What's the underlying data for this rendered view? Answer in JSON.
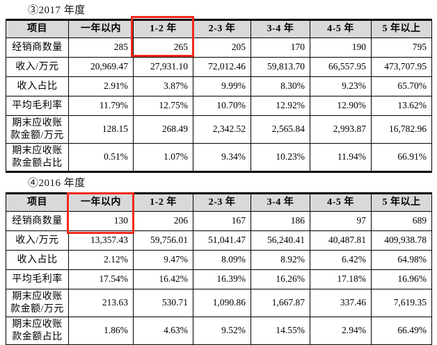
{
  "annotation": {
    "box_color": "#f2281c",
    "boxes": [
      {
        "section_title": "③2017 年度",
        "highlighted_column": "1-2 年",
        "highlighted_value": "265"
      },
      {
        "section_title": "④2016 年度",
        "highlighted_column": "一年以内",
        "highlighted_value": "130"
      }
    ]
  },
  "sections": [
    {
      "title": "③2017 年度",
      "columns": [
        "项目",
        "一年以内",
        "1-2 年",
        "2-3 年",
        "3-4 年",
        "4-5 年",
        "5 年以上"
      ],
      "rows": [
        {
          "label": "经销商数量",
          "values": [
            "285",
            "265",
            "205",
            "170",
            "190",
            "795"
          ]
        },
        {
          "label": "收入/万元",
          "values": [
            "20,969.47",
            "27,931.10",
            "72,012.46",
            "59,813.70",
            "66,557.95",
            "473,707.95"
          ]
        },
        {
          "label": "收入占比",
          "values": [
            "2.91%",
            "3.87%",
            "9.99%",
            "8.30%",
            "9.23%",
            "65.70%"
          ]
        },
        {
          "label": "平均毛利率",
          "values": [
            "11.79%",
            "12.75%",
            "10.70%",
            "12.92%",
            "12.90%",
            "13.62%"
          ]
        },
        {
          "label": "期末应收账款金额/万元",
          "values": [
            "128.15",
            "268.49",
            "2,342.52",
            "2,565.84",
            "2,993.87",
            "16,782.96"
          ]
        },
        {
          "label": "期末应收账款金额占比",
          "values": [
            "0.51%",
            "1.07%",
            "9.34%",
            "10.23%",
            "11.94%",
            "66.91%"
          ]
        }
      ]
    },
    {
      "title": "④2016 年度",
      "columns": [
        "项目",
        "一年以内",
        "1-2 年",
        "2-3 年",
        "3-4 年",
        "4-5 年",
        "5 年以上"
      ],
      "rows": [
        {
          "label": "经销商数量",
          "values": [
            "130",
            "206",
            "167",
            "186",
            "97",
            "689"
          ]
        },
        {
          "label": "收入/万元",
          "values": [
            "13,357.43",
            "59,756.01",
            "51,041.47",
            "56,240.41",
            "40,487.81",
            "409,938.78"
          ]
        },
        {
          "label": "收入占比",
          "values": [
            "2.12%",
            "9.47%",
            "8.09%",
            "8.92%",
            "6.42%",
            "64.98%"
          ]
        },
        {
          "label": "平均毛利率",
          "values": [
            "17.54%",
            "16.42%",
            "16.39%",
            "16.26%",
            "17.18%",
            "16.96%"
          ]
        },
        {
          "label": "期末应收账款金额/万元",
          "values": [
            "213.63",
            "530.71",
            "1,090.86",
            "1,667.87",
            "337.46",
            "7,619.35"
          ]
        },
        {
          "label": "期末应收账款金额占比",
          "values": [
            "1.86%",
            "4.63%",
            "9.52%",
            "14.55%",
            "2.94%",
            "66.49%"
          ]
        }
      ]
    }
  ]
}
